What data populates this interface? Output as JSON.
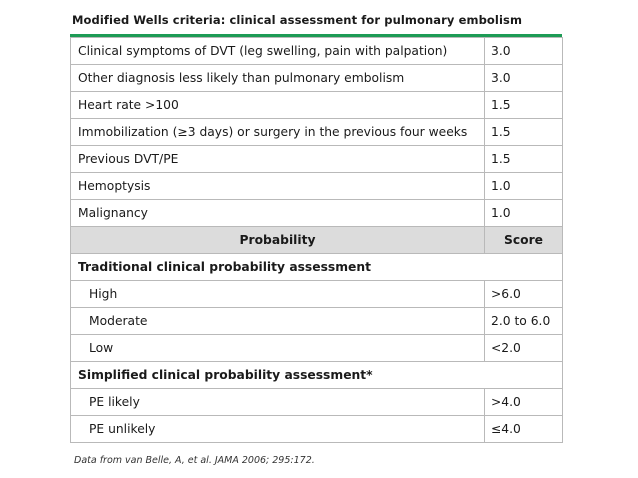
{
  "title": "Modified Wells criteria: clinical assessment for pulmonary embolism",
  "criteria": [
    {
      "label": "Clinical symptoms of DVT (leg swelling, pain with palpation)",
      "score": "3.0"
    },
    {
      "label": "Other diagnosis less likely than pulmonary embolism",
      "score": "3.0"
    },
    {
      "label": "Heart rate >100",
      "score": "1.5"
    },
    {
      "label": "Immobilization (≥3 days) or surgery in the previous four weeks",
      "score": "1.5"
    },
    {
      "label": "Previous DVT/PE",
      "score": "1.5"
    },
    {
      "label": "Hemoptysis",
      "score": "1.0"
    },
    {
      "label": "Malignancy",
      "score": "1.0"
    }
  ],
  "header": {
    "probability": "Probability",
    "score": "Score"
  },
  "traditional": {
    "heading": "Traditional clinical probability assessment",
    "rows": [
      {
        "label": "High",
        "score": ">6.0"
      },
      {
        "label": "Moderate",
        "score": "2.0 to 6.0"
      },
      {
        "label": "Low",
        "score": "<2.0"
      }
    ]
  },
  "simplified": {
    "heading": "Simplified clinical probability assessment*",
    "rows": [
      {
        "label": "PE likely",
        "score": ">4.0"
      },
      {
        "label": "PE unlikely",
        "score": "≤4.0"
      }
    ]
  },
  "footnote": "Data from van Belle, A, et al. JAMA 2006; 295:172."
}
